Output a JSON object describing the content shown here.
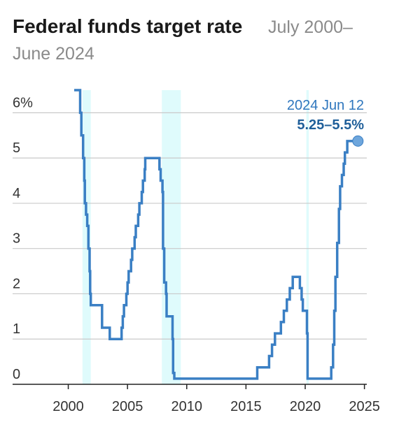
{
  "chart_data": {
    "type": "line",
    "title": "Federal funds target rate",
    "subtitle_line1": "July 2000–",
    "subtitle_line2": "June 2024",
    "xlabel": "",
    "ylabel": "",
    "xlim": [
      1995.3,
      2025.2
    ],
    "ylim": [
      0,
      6.5
    ],
    "x_ticks": [
      2000,
      2005,
      2010,
      2015,
      2020,
      2025
    ],
    "y_ticks": [
      {
        "value": 0,
        "label": "0"
      },
      {
        "value": 1,
        "label": "1"
      },
      {
        "value": 2,
        "label": "2"
      },
      {
        "value": 3,
        "label": "3"
      },
      {
        "value": 4,
        "label": "4"
      },
      {
        "value": 5,
        "label": "5"
      },
      {
        "value": 6,
        "label": "6%"
      }
    ],
    "grid": true,
    "shaded_periods": [
      {
        "start": 2001.2,
        "end": 2001.9
      },
      {
        "start": 2007.9,
        "end": 2009.5
      },
      {
        "start": 2020.1,
        "end": 2020.3
      }
    ],
    "series": [
      {
        "x": [
          2000.5,
          2001.0,
          2001.0,
          2001.1,
          2001.1,
          2001.25,
          2001.25,
          2001.35,
          2001.35,
          2001.4,
          2001.4,
          2001.5,
          2001.5,
          2001.6,
          2001.6,
          2001.7,
          2001.7,
          2001.8,
          2001.8,
          2001.85,
          2001.85,
          2001.9,
          2001.9,
          2002.85,
          2002.85,
          2003.5,
          2003.5,
          2004.5,
          2004.5,
          2004.6,
          2004.6,
          2004.7,
          2004.7,
          2004.9,
          2004.9,
          2005.0,
          2005.0,
          2005.1,
          2005.1,
          2005.3,
          2005.3,
          2005.4,
          2005.4,
          2005.6,
          2005.6,
          2005.7,
          2005.7,
          2005.9,
          2005.9,
          2006.0,
          2006.0,
          2006.2,
          2006.2,
          2006.3,
          2006.3,
          2006.45,
          2006.45,
          2006.5,
          2006.5,
          2007.7,
          2007.7,
          2007.8,
          2007.8,
          2007.95,
          2007.95,
          2008.0,
          2008.0,
          2008.1,
          2008.1,
          2008.25,
          2008.25,
          2008.3,
          2008.3,
          2008.8,
          2008.8,
          2008.85,
          2008.85,
          2008.95,
          2008.95,
          2015.95,
          2015.95,
          2016.95,
          2016.95,
          2017.2,
          2017.2,
          2017.45,
          2017.45,
          2017.95,
          2017.95,
          2018.2,
          2018.2,
          2018.45,
          2018.45,
          2018.7,
          2018.7,
          2018.95,
          2018.95,
          2019.55,
          2019.55,
          2019.7,
          2019.7,
          2019.8,
          2019.8,
          2020.15,
          2020.15,
          2020.2,
          2020.2,
          2022.2,
          2022.2,
          2022.35,
          2022.35,
          2022.45,
          2022.45,
          2022.55,
          2022.55,
          2022.7,
          2022.7,
          2022.85,
          2022.85,
          2022.95,
          2022.95,
          2023.1,
          2023.1,
          2023.25,
          2023.25,
          2023.35,
          2023.35,
          2023.55,
          2023.55,
          2024.45
        ],
        "values": [
          6.5,
          6.5,
          6.0,
          6.0,
          5.5,
          5.5,
          5.0,
          5.0,
          4.5,
          4.5,
          4.0,
          4.0,
          3.75,
          3.75,
          3.5,
          3.5,
          3.0,
          3.0,
          2.5,
          2.5,
          2.0,
          2.0,
          1.75,
          1.75,
          1.25,
          1.25,
          1.0,
          1.0,
          1.25,
          1.25,
          1.5,
          1.5,
          1.75,
          1.75,
          2.0,
          2.0,
          2.25,
          2.25,
          2.5,
          2.5,
          2.75,
          2.75,
          3.0,
          3.0,
          3.25,
          3.25,
          3.5,
          3.5,
          3.75,
          3.75,
          4.0,
          4.0,
          4.25,
          4.25,
          4.5,
          4.5,
          4.75,
          4.75,
          5.0,
          5.0,
          4.75,
          4.75,
          4.5,
          4.5,
          4.25,
          4.25,
          3.0,
          3.0,
          2.25,
          2.25,
          2.0,
          2.0,
          1.5,
          1.5,
          1.0,
          1.0,
          0.25,
          0.25,
          0.125,
          0.125,
          0.375,
          0.375,
          0.625,
          0.625,
          0.875,
          0.875,
          1.125,
          1.125,
          1.375,
          1.375,
          1.625,
          1.625,
          1.875,
          1.875,
          2.125,
          2.125,
          2.375,
          2.375,
          2.125,
          2.125,
          1.875,
          1.875,
          1.625,
          1.625,
          1.125,
          1.125,
          0.125,
          0.125,
          0.375,
          0.375,
          0.875,
          0.875,
          1.625,
          1.625,
          2.375,
          2.375,
          3.125,
          3.125,
          3.875,
          3.875,
          4.375,
          4.375,
          4.625,
          4.625,
          4.875,
          4.875,
          5.125,
          5.125,
          5.375,
          5.375
        ]
      }
    ],
    "annotation": {
      "date": "2024 Jun 12",
      "value_label": "5.25–5.5%",
      "x": 2024.45,
      "y": 5.375
    },
    "colors": {
      "line": "#3a7fc4",
      "marker": "#6ea6dc",
      "shade": "#dffbfc",
      "grid": "#c9c9c9",
      "axis": "#222222",
      "title": "#1a1a1a",
      "subtitle": "#8a8a8a",
      "tick": "#333333",
      "annotation_date": "#2f77be",
      "annotation_value": "#1f5f9a"
    }
  }
}
